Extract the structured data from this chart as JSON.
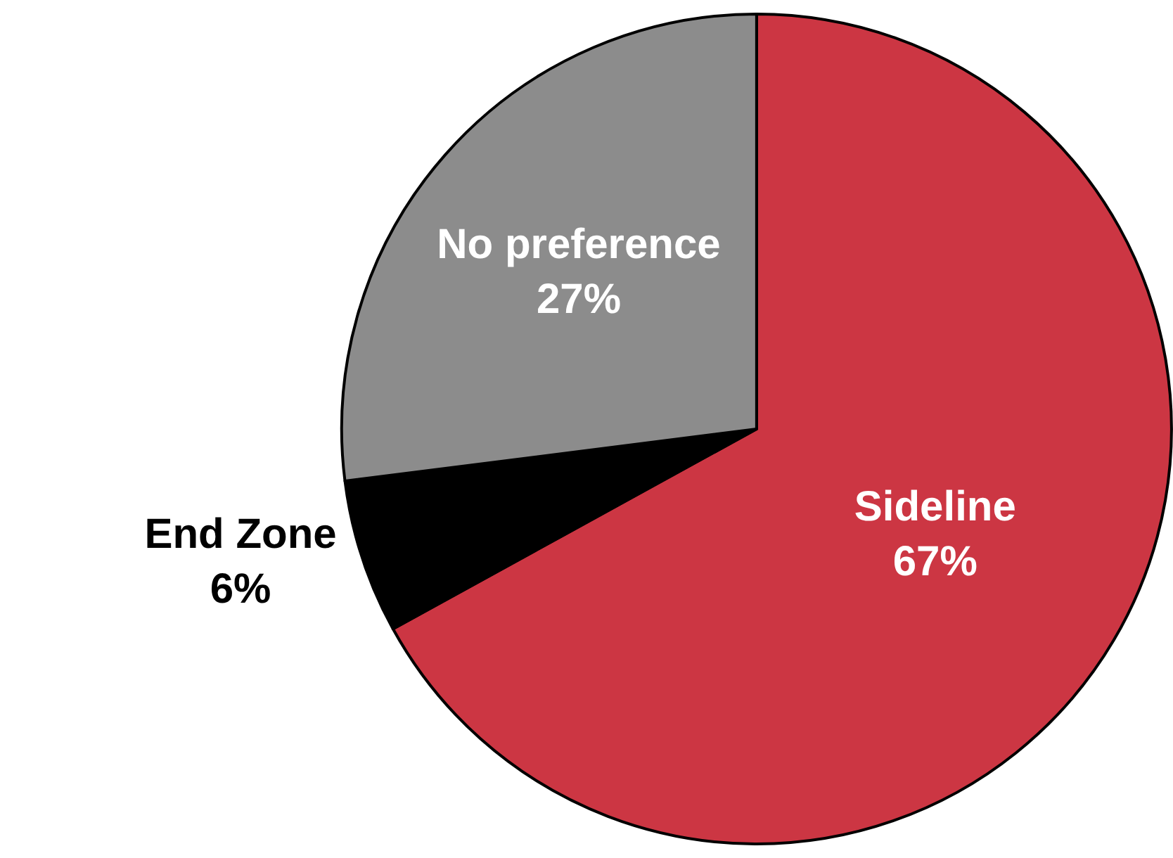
{
  "chart_data": {
    "type": "pie",
    "categories": [
      "Sideline",
      "End Zone",
      "No preference"
    ],
    "values": [
      67,
      6,
      27
    ],
    "value_labels": [
      "67%",
      "6%",
      "27%"
    ],
    "colors": [
      "#cc3643",
      "#000000",
      "#8c8c8c"
    ]
  }
}
